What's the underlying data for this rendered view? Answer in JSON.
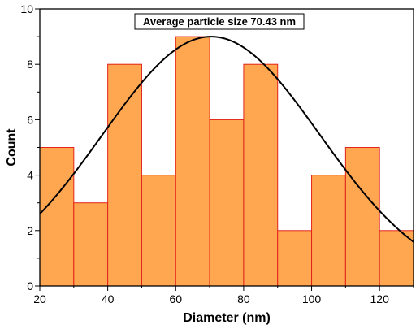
{
  "chart_data": {
    "type": "bar",
    "subtype": "histogram-with-fit",
    "bins": [
      {
        "from": 20,
        "to": 30,
        "count": 5
      },
      {
        "from": 30,
        "to": 40,
        "count": 3
      },
      {
        "from": 40,
        "to": 50,
        "count": 8
      },
      {
        "from": 50,
        "to": 60,
        "count": 4
      },
      {
        "from": 60,
        "to": 70,
        "count": 9
      },
      {
        "from": 70,
        "to": 80,
        "count": 6
      },
      {
        "from": 80,
        "to": 90,
        "count": 8
      },
      {
        "from": 90,
        "to": 100,
        "count": 2
      },
      {
        "from": 100,
        "to": 110,
        "count": 4
      },
      {
        "from": 110,
        "to": 120,
        "count": 5
      },
      {
        "from": 120,
        "to": 130,
        "count": 2
      }
    ],
    "fit_curve": {
      "type": "gaussian",
      "peak_x": 70.43,
      "peak_y": 9.0,
      "sigma": 32.0
    },
    "annotation": "Average particle size 70.43 nm",
    "xlabel": "Diameter (nm)",
    "ylabel": "Count",
    "xlim": [
      20,
      130
    ],
    "ylim": [
      0,
      10
    ],
    "xticks": [
      20,
      40,
      60,
      80,
      100,
      120
    ],
    "yticks": [
      0,
      2,
      4,
      6,
      8,
      10
    ],
    "grid": false,
    "colors": {
      "bar_fill": "#FFA650",
      "bar_edge": "#E2231A",
      "curve": "#000000",
      "axis": "#000000"
    }
  }
}
